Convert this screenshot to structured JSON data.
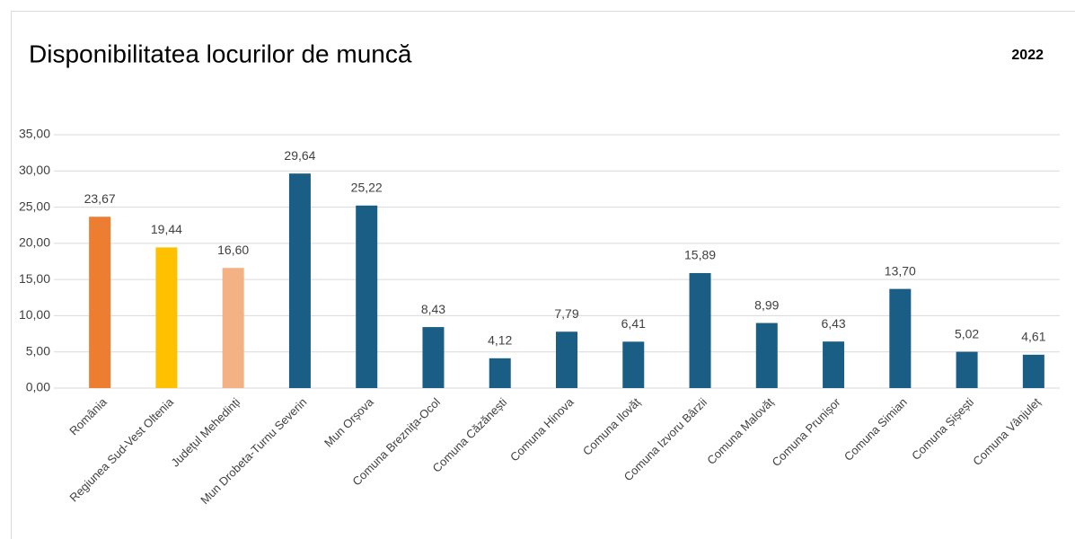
{
  "chart_data": {
    "type": "bar",
    "title": "Disponibilitatea locurilor de muncă",
    "annotation": "2022",
    "categories": [
      "România",
      "Regiunea Sud-Vest Oltenia",
      "Județul Mehedinți",
      "Mun Drobeta-Turnu Severin",
      "Mun Orșova",
      "Comuna Breznița-Ocol",
      "Comuna Căzănești",
      "Comuna Hinova",
      "Comuna Ilovăț",
      "Comuna Izvoru Bârzii",
      "Comuna Malovăț",
      "Comuna Prunișor",
      "Comuna Simian",
      "Comuna Șișești",
      "Comuna Vânjuleț"
    ],
    "values": [
      23.67,
      19.44,
      16.6,
      29.64,
      25.22,
      8.43,
      4.12,
      7.79,
      6.41,
      15.89,
      8.99,
      6.43,
      13.7,
      5.02,
      4.61
    ],
    "value_labels": [
      "23,67",
      "19,44",
      "16,60",
      "29,64",
      "25,22",
      "8,43",
      "4,12",
      "7,79",
      "6,41",
      "15,89",
      "8,99",
      "6,43",
      "13,70",
      "5,02",
      "4,61"
    ],
    "colors": [
      "#ed7d31",
      "#ffc000",
      "#f4b183",
      "#1a5e85",
      "#1a5e85",
      "#1a5e85",
      "#1a5e85",
      "#1a5e85",
      "#1a5e85",
      "#1a5e85",
      "#1a5e85",
      "#1a5e85",
      "#1a5e85",
      "#1a5e85",
      "#1a5e85"
    ],
    "ylim": [
      0,
      35
    ],
    "yticks": [
      {
        "value": 0,
        "label": "0,00"
      },
      {
        "value": 5,
        "label": "5,00"
      },
      {
        "value": 10,
        "label": "10,00"
      },
      {
        "value": 15,
        "label": "15,00"
      },
      {
        "value": 20,
        "label": "20,00"
      },
      {
        "value": 25,
        "label": "25,00"
      },
      {
        "value": 30,
        "label": "30,00"
      },
      {
        "value": 35,
        "label": "35,00"
      }
    ],
    "grid": true
  }
}
